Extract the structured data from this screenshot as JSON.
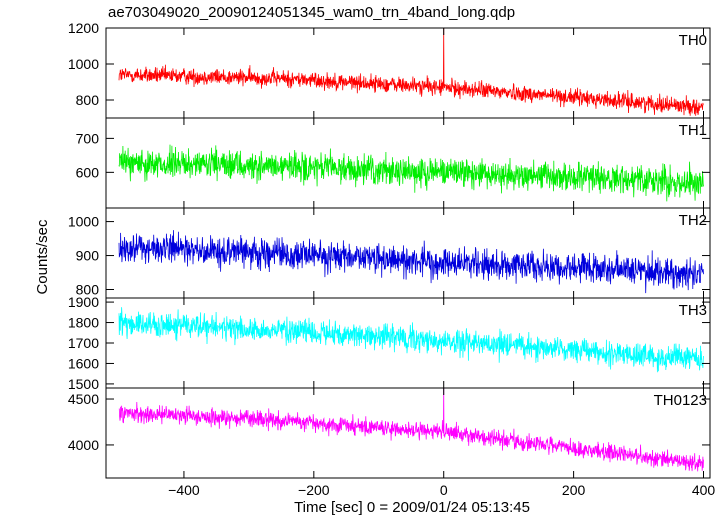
{
  "chart_data": {
    "type": "line",
    "title": "ae703049020_20090124051345_wam0_trn_4band_long.qdp",
    "xlabel": "Time [sec] 0 = 2009/01/24 05:13:45",
    "ylabel": "Counts/sec",
    "xlim": [
      -520,
      410
    ],
    "x_ticks": [
      "−400",
      "−200",
      "0",
      "200",
      "400"
    ],
    "x_tick_values": [
      -400,
      -200,
      0,
      200,
      400
    ],
    "data_x_range": [
      -500,
      400
    ],
    "time_resolution_sec": 0.5,
    "grid": false,
    "legend": "none",
    "panels": [
      {
        "name": "TH0",
        "color": "#ff0000",
        "ylim": [
          700,
          1200
        ],
        "y_ticks": [
          "800",
          "1000",
          "1200"
        ],
        "y_tick_values": [
          800,
          1000,
          1200
        ],
        "trend": {
          "x": [
            -500,
            -250,
            0,
            400
          ],
          "y": [
            940,
            920,
            870,
            760
          ]
        },
        "noise_sigma": 32,
        "spikes": [
          {
            "x": 0,
            "y": 1200
          }
        ]
      },
      {
        "name": "TH1",
        "color": "#00ee00",
        "ylim": [
          495,
          760
        ],
        "y_ticks": [
          "600",
          "700"
        ],
        "y_tick_values": [
          600,
          700
        ],
        "trend": {
          "x": [
            -500,
            -250,
            0,
            400
          ],
          "y": [
            630,
            615,
            600,
            570
          ]
        },
        "noise_sigma": 30,
        "spikes": []
      },
      {
        "name": "TH2",
        "color": "#0000dd",
        "ylim": [
          775,
          1040
        ],
        "y_ticks": [
          "800",
          "900",
          "1000"
        ],
        "y_tick_values": [
          800,
          900,
          1000
        ],
        "trend": {
          "x": [
            -500,
            -250,
            0,
            400
          ],
          "y": [
            925,
            905,
            880,
            845
          ]
        },
        "noise_sigma": 30,
        "spikes": []
      },
      {
        "name": "TH3",
        "color": "#00ffff",
        "ylim": [
          1480,
          1920
        ],
        "y_ticks": [
          "1500",
          "1600",
          "1700",
          "1800",
          "1900"
        ],
        "y_tick_values": [
          1500,
          1600,
          1700,
          1800,
          1900
        ],
        "trend": {
          "x": [
            -500,
            -250,
            0,
            400
          ],
          "y": [
            1800,
            1760,
            1710,
            1620
          ]
        },
        "noise_sigma": 42,
        "spikes": []
      },
      {
        "name": "TH0123",
        "color": "#ff00ff",
        "ylim": [
          3640,
          4620
        ],
        "y_ticks": [
          "4000",
          "4500"
        ],
        "y_tick_values": [
          4000,
          4500
        ],
        "trend": {
          "x": [
            -500,
            -250,
            0,
            400
          ],
          "y": [
            4360,
            4260,
            4140,
            3790
          ]
        },
        "noise_sigma": 65,
        "spikes": [
          {
            "x": 0,
            "y": 4620
          }
        ]
      }
    ]
  }
}
